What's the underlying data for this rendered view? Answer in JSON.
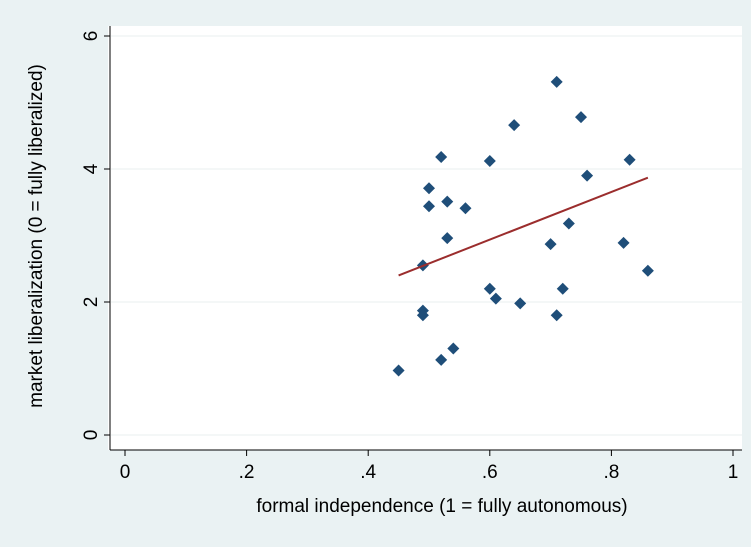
{
  "chart_data": {
    "type": "scatter",
    "xlabel": "formal independence (1 = fully autonomous)",
    "ylabel": "market liberalization (0 = fully liberalized)",
    "xlim": [
      0,
      1
    ],
    "ylim": [
      0,
      6
    ],
    "x_ticks": [
      {
        "value": 0,
        "label": "0"
      },
      {
        "value": 0.2,
        "label": ".2"
      },
      {
        "value": 0.4,
        "label": ".4"
      },
      {
        "value": 0.6,
        "label": ".6"
      },
      {
        "value": 0.8,
        "label": ".8"
      },
      {
        "value": 1,
        "label": "1"
      }
    ],
    "y_ticks": [
      {
        "value": 0,
        "label": "0"
      },
      {
        "value": 2,
        "label": "2"
      },
      {
        "value": 4,
        "label": "4"
      },
      {
        "value": 6,
        "label": "6"
      }
    ],
    "grid": {
      "horizontal": true,
      "vertical": false
    },
    "colors": {
      "background": "#eaf2f3",
      "plot_area": "#ffffff",
      "marker": "#1f4e79",
      "fit_line": "#9b2d2d",
      "gridline": "#e8efef"
    },
    "points": [
      {
        "x": 0.45,
        "y": 0.97
      },
      {
        "x": 0.49,
        "y": 2.55
      },
      {
        "x": 0.49,
        "y": 1.87
      },
      {
        "x": 0.49,
        "y": 1.8
      },
      {
        "x": 0.5,
        "y": 3.71
      },
      {
        "x": 0.5,
        "y": 3.44
      },
      {
        "x": 0.52,
        "y": 4.18
      },
      {
        "x": 0.52,
        "y": 1.13
      },
      {
        "x": 0.53,
        "y": 3.51
      },
      {
        "x": 0.53,
        "y": 2.96
      },
      {
        "x": 0.54,
        "y": 1.3
      },
      {
        "x": 0.56,
        "y": 3.41
      },
      {
        "x": 0.6,
        "y": 4.12
      },
      {
        "x": 0.6,
        "y": 2.2
      },
      {
        "x": 0.61,
        "y": 2.05
      },
      {
        "x": 0.64,
        "y": 4.66
      },
      {
        "x": 0.65,
        "y": 1.98
      },
      {
        "x": 0.7,
        "y": 2.87
      },
      {
        "x": 0.71,
        "y": 5.31
      },
      {
        "x": 0.71,
        "y": 1.8
      },
      {
        "x": 0.72,
        "y": 2.2
      },
      {
        "x": 0.73,
        "y": 3.18
      },
      {
        "x": 0.75,
        "y": 4.78
      },
      {
        "x": 0.76,
        "y": 3.9
      },
      {
        "x": 0.82,
        "y": 2.89
      },
      {
        "x": 0.83,
        "y": 4.14
      },
      {
        "x": 0.86,
        "y": 2.47
      }
    ],
    "fit_line": {
      "x": [
        0.45,
        0.86
      ],
      "y": [
        2.4,
        3.87
      ]
    }
  }
}
